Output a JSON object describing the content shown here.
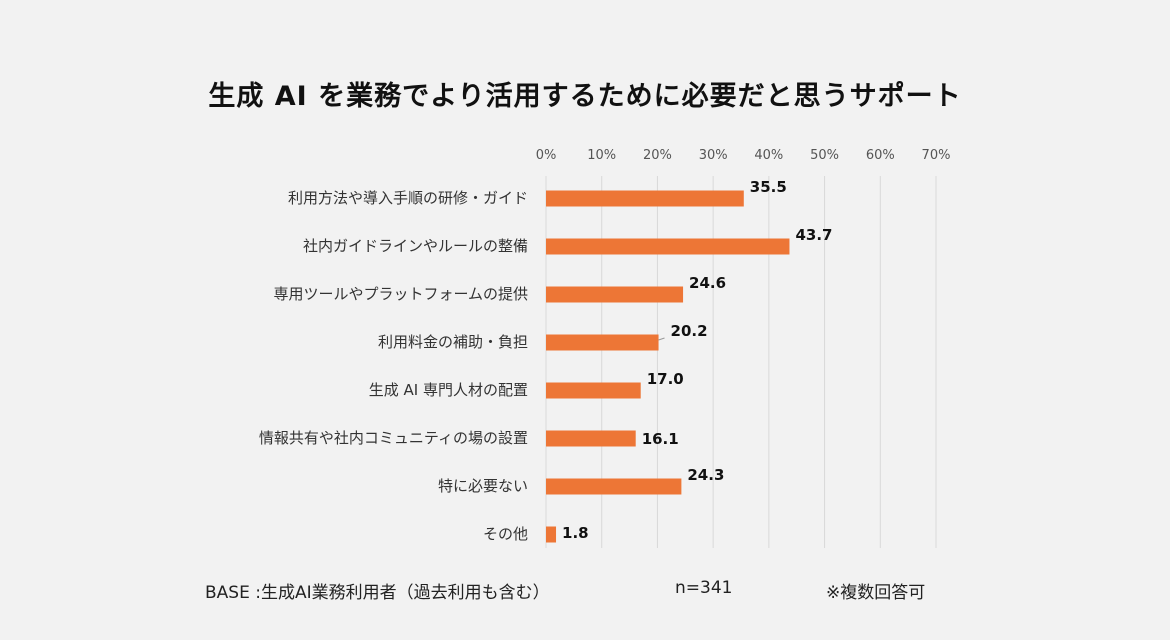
{
  "chart_data": {
    "type": "bar",
    "orientation": "horizontal",
    "title": "生成 AI を業務でより活用するために必要だと思うサポート",
    "categories": [
      "利用方法や導入手順の研修・ガイド",
      "社内ガイドラインやルールの整備",
      "専用ツールやプラットフォームの提供",
      "利用料金の補助・負担",
      "生成 AI 専門人材の配置",
      "情報共有や社内コミュニティの場の設置",
      "特に必要ない",
      "その他"
    ],
    "values": [
      35.5,
      43.7,
      24.6,
      20.2,
      17.0,
      16.1,
      24.3,
      1.8
    ],
    "value_labels": [
      "35.5",
      "43.7",
      "24.6",
      "20.2",
      "17.0",
      "16.1",
      "24.3",
      "1.8"
    ],
    "xlim": [
      0,
      70
    ],
    "xticks": [
      "0%",
      "10%",
      "20%",
      "30%",
      "40%",
      "50%",
      "60%",
      "70%"
    ],
    "grid": true,
    "bar_color": "#ed7636"
  },
  "footer": {
    "base": "BASE :生成AI業務利用者（過去利用も含む）",
    "n": "n=341",
    "note": "※複数回答可"
  }
}
